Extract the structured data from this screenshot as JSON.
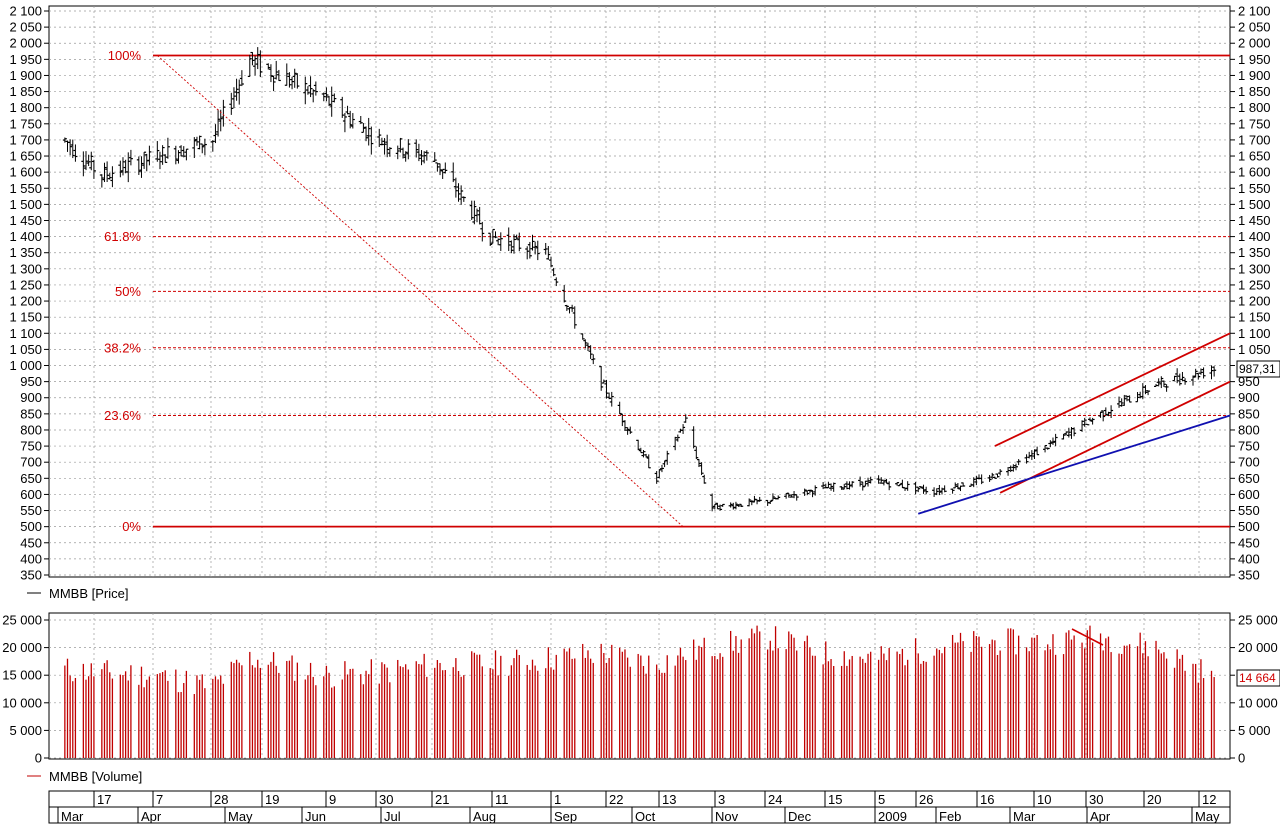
{
  "price_panel": {
    "legend_label": "MMBB [Price]",
    "last_value": "987,31",
    "y_ticks": [
      "2 100",
      "2 050",
      "2 000",
      "1 950",
      "1 900",
      "1 850",
      "1 800",
      "1 750",
      "1 700",
      "1 650",
      "1 600",
      "1 550",
      "1 500",
      "1 450",
      "1 400",
      "1 350",
      "1 300",
      "1 250",
      "1 200",
      "1 150",
      "1 100",
      "1 050",
      "1 000",
      "950",
      "900",
      "850",
      "800",
      "750",
      "700",
      "650",
      "600",
      "550",
      "500",
      "450",
      "400",
      "350"
    ],
    "ylim": [
      350,
      2100
    ]
  },
  "volume_panel": {
    "legend_label": "MMBB [Volume]",
    "last_value": "14 664",
    "y_ticks": [
      "25 000",
      "20 000",
      "15 000",
      "10 000",
      "5 000",
      "0"
    ],
    "ylim": [
      0,
      25000
    ]
  },
  "time_axis": {
    "day_labels": [
      "17",
      "7",
      "28",
      "19",
      "9",
      "30",
      "21",
      "11",
      "1",
      "22",
      "13",
      "3",
      "24",
      "15",
      "5",
      "26",
      "16",
      "10",
      "30",
      "20",
      "12"
    ],
    "month_labels": [
      "Mar",
      "Apr",
      "May",
      "Jun",
      "Jul",
      "Aug",
      "Sep",
      "Oct",
      "Nov",
      "Dec",
      "2009",
      "Feb",
      "Mar",
      "Apr",
      "May"
    ]
  },
  "fibonacci": {
    "levels": [
      {
        "label": "100%",
        "value": 1962
      },
      {
        "label": "61.8%",
        "value": 1400
      },
      {
        "label": "50%",
        "value": 1230
      },
      {
        "label": "38.2%",
        "value": 1055
      },
      {
        "label": "23.6%",
        "value": 845
      },
      {
        "label": "0%",
        "value": 500
      }
    ]
  },
  "chart_data": {
    "type": "line",
    "series": [
      {
        "name": "MMBB [Price]",
        "style": "ohlc-bars",
        "color": "#000000",
        "x": [
          "2008-03-03",
          "2008-03-17",
          "2008-04-07",
          "2008-04-28",
          "2008-05-12",
          "2008-05-19",
          "2008-06-09",
          "2008-06-30",
          "2008-07-21",
          "2008-08-11",
          "2008-09-01",
          "2008-09-22",
          "2008-10-13",
          "2008-10-24",
          "2008-11-03",
          "2008-11-24",
          "2008-12-15",
          "2009-01-05",
          "2009-01-26",
          "2009-02-16",
          "2009-03-10",
          "2009-03-30",
          "2009-04-20",
          "2009-05-12"
        ],
        "values": [
          1700,
          1590,
          1650,
          1700,
          1950,
          1920,
          1830,
          1700,
          1640,
          1400,
          1350,
          950,
          650,
          830,
          560,
          580,
          620,
          640,
          610,
          650,
          750,
          850,
          940,
          990
        ]
      },
      {
        "name": "MMBB [Volume]",
        "style": "bars",
        "color": "#c00000",
        "x": [
          "2008-03-03",
          "2008-03-17",
          "2008-04-07",
          "2008-04-28",
          "2008-05-12",
          "2008-05-19",
          "2008-06-09",
          "2008-06-30",
          "2008-07-21",
          "2008-08-11",
          "2008-09-01",
          "2008-09-22",
          "2008-10-13",
          "2008-10-24",
          "2008-11-03",
          "2008-11-24",
          "2008-12-15",
          "2009-01-05",
          "2009-01-26",
          "2009-02-16",
          "2009-03-10",
          "2009-03-30",
          "2009-04-20",
          "2009-05-12"
        ],
        "values": [
          16000,
          15500,
          15000,
          13000,
          18000,
          17500,
          15000,
          15500,
          17000,
          17000,
          18000,
          19000,
          17000,
          19000,
          20000,
          22000,
          19000,
          18000,
          20000,
          21000,
          21000,
          22000,
          20000,
          14664
        ]
      }
    ],
    "ylim_price": [
      350,
      2100
    ],
    "ylim_volume": [
      0,
      25000
    ],
    "grid": true,
    "trendlines": [
      {
        "name": "upper-channel",
        "color": "#d00000",
        "from": {
          "x": "2009-02-18",
          "y": 750
        },
        "to": {
          "x": "2009-05-18",
          "y": 1100
        }
      },
      {
        "name": "lower-channel",
        "color": "#d00000",
        "from": {
          "x": "2009-02-20",
          "y": 605
        },
        "to": {
          "x": "2009-05-18",
          "y": 950
        }
      },
      {
        "name": "support-line",
        "color": "#1010b0",
        "from": {
          "x": "2009-01-20",
          "y": 540
        },
        "to": {
          "x": "2009-05-18",
          "y": 845
        }
      },
      {
        "name": "fibonacci-diagonal",
        "color": "#d00000",
        "from": {
          "x": "2008-04-07",
          "y": 1962
        },
        "to": {
          "x": "2008-10-23",
          "y": 500
        }
      }
    ]
  },
  "colors": {
    "price_bar": "#000000",
    "volume_bar": "#c00000",
    "fib_line": "#d00000",
    "trend_red": "#d00000",
    "trend_blue": "#1010b0",
    "grid": "#9a9a9a"
  }
}
